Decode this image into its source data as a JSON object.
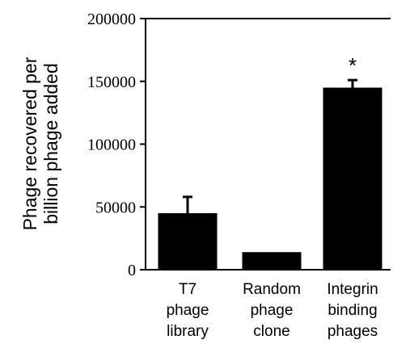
{
  "chart_data": {
    "type": "bar",
    "categories": [
      [
        "T7",
        "phage",
        "library"
      ],
      [
        "Random",
        "phage",
        "clone"
      ],
      [
        "Integrin",
        "binding",
        "phages"
      ]
    ],
    "values": [
      45000,
      14000,
      145000
    ],
    "error_bars": [
      13000,
      null,
      6000
    ],
    "annotations": [
      "",
      "",
      "*"
    ],
    "ylabel": [
      "Phage recovered per",
      "billion phage added"
    ],
    "ylim": [
      0,
      200000
    ],
    "yticks": [
      0,
      50000,
      100000,
      150000,
      200000
    ],
    "ytick_labels": [
      "0",
      "50000",
      "100000",
      "150000",
      "200000"
    ],
    "grid": false,
    "bar_color": "#000000"
  }
}
